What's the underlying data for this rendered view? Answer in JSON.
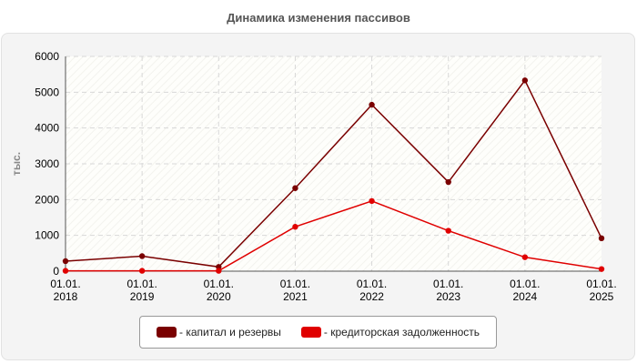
{
  "chart_data": {
    "type": "line",
    "title": "Динамика изменения пассивов",
    "ylabel": "тыс.",
    "xlabel": "",
    "categories": [
      "01.01.\n2018",
      "01.01.\n2019",
      "01.01.\n2020",
      "01.01.\n2021",
      "01.01.\n2022",
      "01.01.\n2023",
      "01.01.\n2024",
      "01.01.\n2025"
    ],
    "ylim": [
      0,
      6000
    ],
    "yticks": [
      0,
      1000,
      2000,
      3000,
      4000,
      5000,
      6000
    ],
    "grid": true,
    "legend_position": "bottom",
    "series": [
      {
        "name": "- капитал и резервы",
        "color": "#7a0000",
        "values": [
          280,
          420,
          120,
          2320,
          4650,
          2490,
          5330,
          920
        ]
      },
      {
        "name": "- кредиторская задолженность",
        "color": "#e00000",
        "values": [
          10,
          10,
          10,
          1240,
          1960,
          1130,
          390,
          60
        ]
      }
    ]
  }
}
